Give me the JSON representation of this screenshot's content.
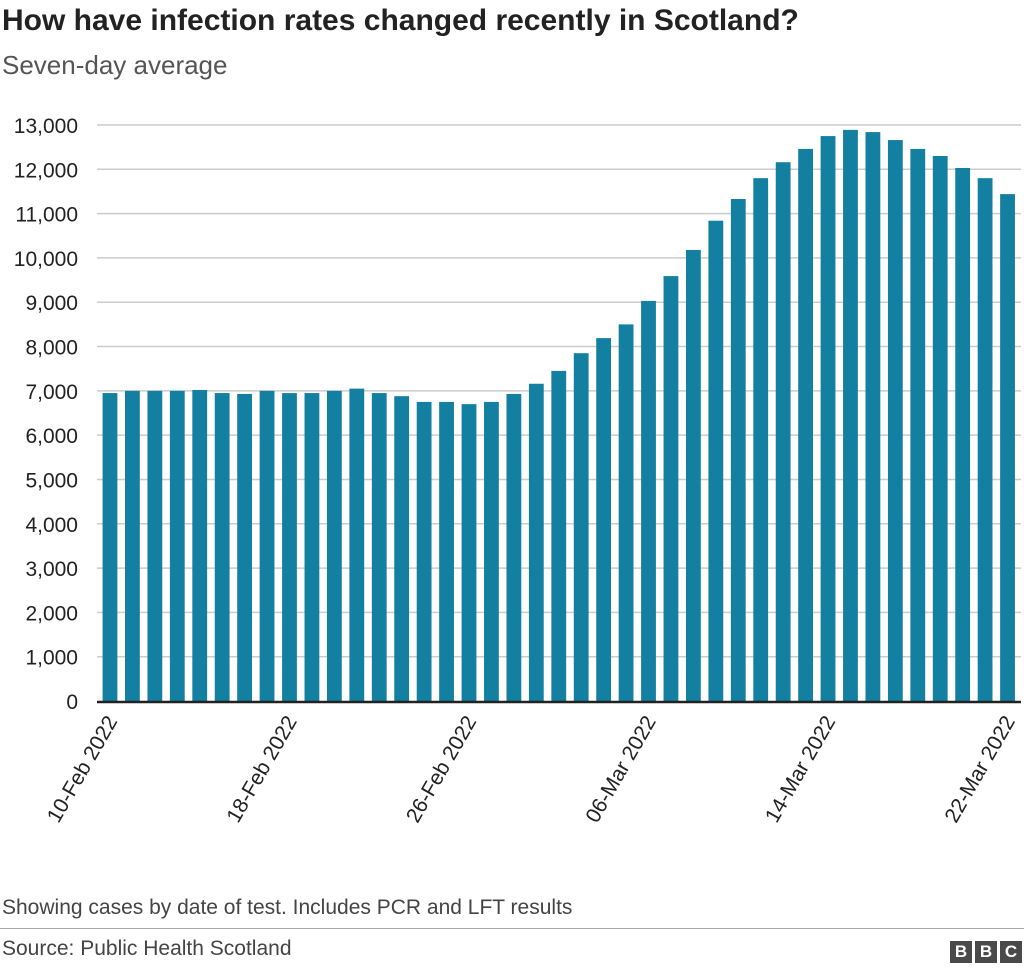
{
  "chart_data": {
    "type": "bar",
    "title": "How have infection rates changed recently in Scotland?",
    "subtitle": "Seven-day average",
    "xlabel": "",
    "ylabel": "",
    "ylim": [
      0,
      13000
    ],
    "yticks": [
      0,
      1000,
      2000,
      3000,
      4000,
      5000,
      6000,
      7000,
      8000,
      9000,
      10000,
      11000,
      12000,
      13000
    ],
    "ytick_labels": [
      "0",
      "1,000",
      "2,000",
      "3,000",
      "4,000",
      "5,000",
      "6,000",
      "7,000",
      "8,000",
      "9,000",
      "10,000",
      "11,000",
      "12,000",
      "13,000"
    ],
    "xtick_labels": [
      "10-Feb 2022",
      "18-Feb 2022",
      "26-Feb 2022",
      "06-Mar 2022",
      "14-Mar 2022",
      "22-Mar 2022"
    ],
    "xtick_indices": [
      0,
      8,
      16,
      24,
      32,
      40
    ],
    "categories": [
      "10-Feb",
      "11-Feb",
      "12-Feb",
      "13-Feb",
      "14-Feb",
      "15-Feb",
      "16-Feb",
      "17-Feb",
      "18-Feb",
      "19-Feb",
      "20-Feb",
      "21-Feb",
      "22-Feb",
      "23-Feb",
      "24-Feb",
      "25-Feb",
      "26-Feb",
      "27-Feb",
      "28-Feb",
      "01-Mar",
      "02-Mar",
      "03-Mar",
      "04-Mar",
      "05-Mar",
      "06-Mar",
      "07-Mar",
      "08-Mar",
      "09-Mar",
      "10-Mar",
      "11-Mar",
      "12-Mar",
      "13-Mar",
      "14-Mar",
      "15-Mar",
      "16-Mar",
      "17-Mar",
      "18-Mar",
      "19-Mar",
      "20-Mar",
      "21-Mar",
      "22-Mar"
    ],
    "values": [
      6950,
      7000,
      7000,
      7000,
      7020,
      6950,
      6930,
      7000,
      6950,
      6950,
      7000,
      7050,
      6950,
      6880,
      6750,
      6750,
      6700,
      6750,
      6930,
      7160,
      7450,
      7850,
      8190,
      8500,
      9030,
      9590,
      10180,
      10840,
      11330,
      11800,
      12160,
      12460,
      12750,
      12890,
      12840,
      12660,
      12460,
      12300,
      12030,
      11800,
      11440
    ],
    "grid": true,
    "bar_color": "#1380A1"
  },
  "footer": {
    "note": "Showing cases by date of test. Includes PCR and LFT results",
    "source": "Source: Public Health Scotland",
    "logo": [
      "B",
      "B",
      "C"
    ]
  }
}
